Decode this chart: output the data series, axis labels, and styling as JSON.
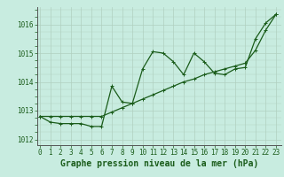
{
  "title": "Graphe pression niveau de la mer (hPa)",
  "hours": [
    0,
    1,
    2,
    3,
    4,
    5,
    6,
    7,
    8,
    9,
    10,
    11,
    12,
    13,
    14,
    15,
    16,
    17,
    18,
    19,
    20,
    21,
    22,
    23
  ],
  "ylim": [
    1011.8,
    1016.6
  ],
  "yticks": [
    1012,
    1013,
    1014,
    1015,
    1016
  ],
  "xlim": [
    -0.3,
    23.5
  ],
  "background_color": "#c8ece0",
  "line_color": "#1a5c1a",
  "grid_color": "#b0d0c0",
  "tick_label_color": "#1a5c1a",
  "title_color": "#1a5c1a",
  "title_fontsize": 7.0,
  "tick_fontsize": 5.5,
  "line_jagged_y": [
    1012.8,
    1012.6,
    1012.55,
    1012.55,
    1012.55,
    1012.45,
    1012.45,
    1013.85,
    1013.3,
    1013.25,
    1014.45,
    1015.05,
    1015.0,
    1014.7,
    1014.25,
    1015.0,
    1014.7,
    1014.3,
    1014.25,
    1014.45,
    1014.5,
    1015.5,
    1016.05,
    1016.35
  ],
  "line_trend_y": [
    1012.8,
    1012.8,
    1012.8,
    1012.8,
    1012.8,
    1012.8,
    1012.8,
    1012.95,
    1013.1,
    1013.25,
    1013.4,
    1013.55,
    1013.7,
    1013.85,
    1014.0,
    1014.1,
    1014.25,
    1014.35,
    1014.45,
    1014.55,
    1014.65,
    1015.1,
    1015.8,
    1016.35
  ]
}
